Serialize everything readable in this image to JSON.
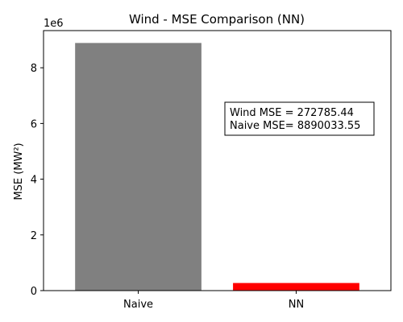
{
  "chart_data": {
    "type": "bar",
    "title": "Wind - MSE Comparison (NN)",
    "ylabel": "MSE (MW²)",
    "xlabel": "",
    "categories": [
      "Naive",
      "NN"
    ],
    "values": [
      8890033.55,
      272785.44
    ],
    "colors": [
      "#808080",
      "#ff0000"
    ],
    "ylim": [
      0,
      9334535
    ],
    "yticks": [
      0,
      2000000,
      4000000,
      6000000,
      8000000
    ],
    "ytick_labels": [
      "0",
      "2",
      "4",
      "6",
      "8"
    ],
    "y_offset_label": "1e6",
    "grid": false,
    "annotation": {
      "lines": [
        "Wind MSE = 272785.44",
        "Naive MSE= 8890033.55"
      ]
    }
  }
}
